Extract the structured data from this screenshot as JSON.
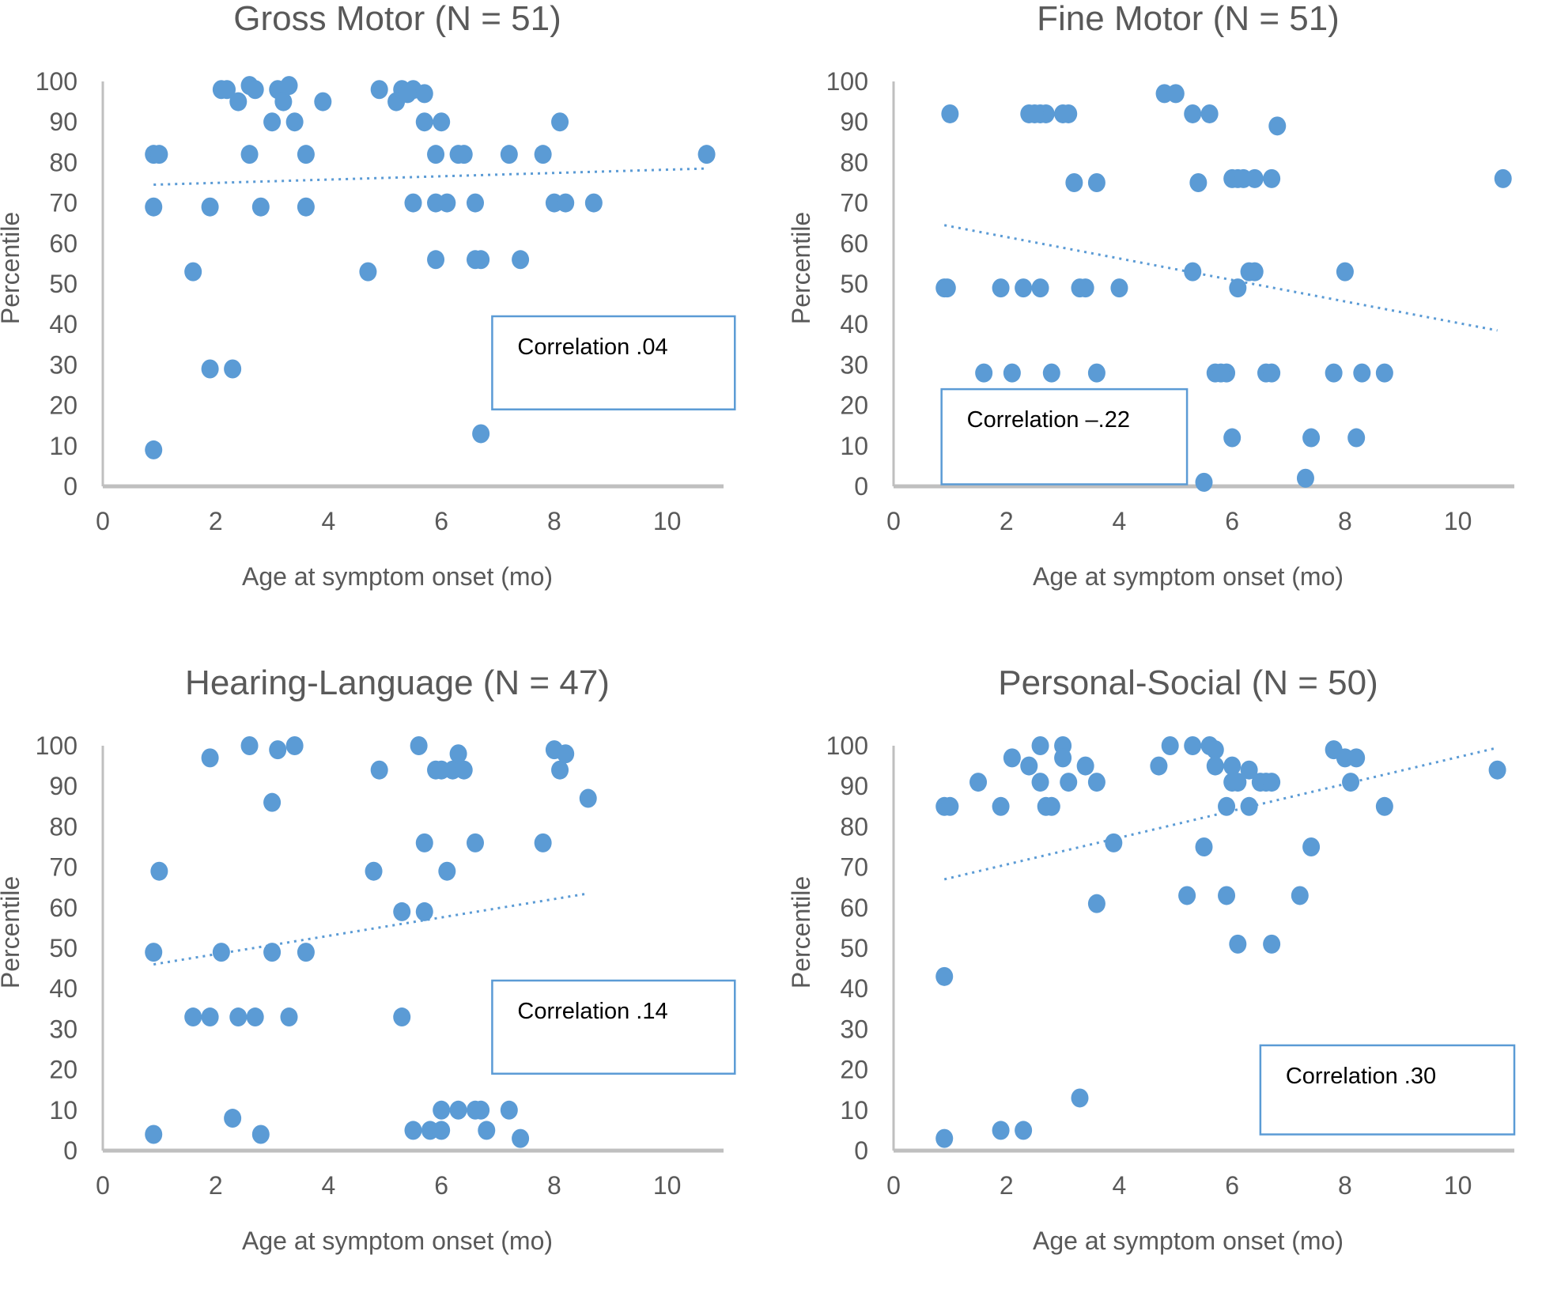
{
  "figure": {
    "colors": {
      "marker": "#5b9bd5",
      "axis": "#bfbfbf",
      "text": "#595959",
      "box_border": "#5b9bd5"
    }
  },
  "chart_data": [
    {
      "type": "scatter",
      "title": "Gross Motor (N = 51)",
      "xlabel": "Age at symptom onset (mo)",
      "ylabel": "Percentile",
      "xlim": [
        0,
        11
      ],
      "ylim": [
        0,
        100
      ],
      "xticks": [
        "0",
        "2",
        "4",
        "6",
        "8",
        "10"
      ],
      "yticks": [
        "0",
        "10",
        "20",
        "30",
        "40",
        "50",
        "60",
        "70",
        "80",
        "90",
        "100"
      ],
      "grid": false,
      "annotation": "Correlation  .04",
      "correlation": 0.04,
      "trendline": {
        "x": [
          0.9,
          10.7
        ],
        "y": [
          74.5,
          78.5
        ],
        "style": "dotted"
      },
      "points": [
        [
          0.9,
          82
        ],
        [
          1.0,
          82
        ],
        [
          0.9,
          69
        ],
        [
          1.6,
          53
        ],
        [
          1.9,
          69
        ],
        [
          1.9,
          29
        ],
        [
          2.3,
          29
        ],
        [
          0.9,
          9
        ],
        [
          2.1,
          98
        ],
        [
          2.4,
          95
        ],
        [
          2.6,
          99
        ],
        [
          2.7,
          98
        ],
        [
          2.6,
          82
        ],
        [
          2.8,
          69
        ],
        [
          3.0,
          90
        ],
        [
          3.1,
          98
        ],
        [
          3.2,
          95
        ],
        [
          3.3,
          99
        ],
        [
          3.4,
          90
        ],
        [
          3.6,
          82
        ],
        [
          3.6,
          69
        ],
        [
          3.9,
          95
        ],
        [
          4.7,
          53
        ],
        [
          4.9,
          98
        ],
        [
          5.2,
          95
        ],
        [
          5.3,
          98
        ],
        [
          5.5,
          98
        ],
        [
          5.7,
          97
        ],
        [
          5.7,
          90
        ],
        [
          5.5,
          70
        ],
        [
          5.9,
          82
        ],
        [
          6.0,
          90
        ],
        [
          5.9,
          70
        ],
        [
          6.1,
          70
        ],
        [
          5.9,
          56
        ],
        [
          6.3,
          82
        ],
        [
          6.4,
          82
        ],
        [
          6.6,
          70
        ],
        [
          6.6,
          56
        ],
        [
          6.7,
          56
        ],
        [
          6.7,
          13
        ],
        [
          7.2,
          82
        ],
        [
          7.4,
          56
        ],
        [
          7.8,
          82
        ],
        [
          8.0,
          70
        ],
        [
          8.2,
          70
        ],
        [
          8.1,
          90
        ],
        [
          8.7,
          70
        ],
        [
          10.7,
          82
        ],
        [
          2.2,
          98
        ],
        [
          5.4,
          97
        ]
      ]
    },
    {
      "type": "scatter",
      "title": "Fine Motor (N = 51)",
      "xlabel": "Age at symptom onset (mo)",
      "ylabel": "Percentile",
      "xlim": [
        0,
        11
      ],
      "ylim": [
        0,
        100
      ],
      "xticks": [
        "0",
        "2",
        "4",
        "6",
        "8",
        "10"
      ],
      "yticks": [
        "0",
        "10",
        "20",
        "30",
        "40",
        "50",
        "60",
        "70",
        "80",
        "90",
        "100"
      ],
      "grid": false,
      "annotation": "Correlation  –.22",
      "correlation": -0.22,
      "trendline": {
        "x": [
          0.9,
          10.7
        ],
        "y": [
          64.5,
          38.5
        ],
        "style": "dotted"
      },
      "points": [
        [
          1.0,
          92
        ],
        [
          0.9,
          49
        ],
        [
          1.6,
          28
        ],
        [
          1.9,
          49
        ],
        [
          2.1,
          28
        ],
        [
          2.3,
          49
        ],
        [
          2.4,
          92
        ],
        [
          2.6,
          92
        ],
        [
          2.7,
          92
        ],
        [
          2.6,
          49
        ],
        [
          2.8,
          28
        ],
        [
          3.0,
          92
        ],
        [
          3.1,
          92
        ],
        [
          3.2,
          75
        ],
        [
          3.3,
          49
        ],
        [
          3.4,
          49
        ],
        [
          3.6,
          75
        ],
        [
          3.6,
          28
        ],
        [
          4.0,
          49
        ],
        [
          4.8,
          97
        ],
        [
          5.0,
          97
        ],
        [
          5.3,
          53
        ],
        [
          5.3,
          92
        ],
        [
          5.4,
          75
        ],
        [
          5.5,
          1
        ],
        [
          5.6,
          92
        ],
        [
          5.7,
          28
        ],
        [
          5.9,
          28
        ],
        [
          6.0,
          76
        ],
        [
          6.0,
          12
        ],
        [
          6.1,
          49
        ],
        [
          6.1,
          76
        ],
        [
          6.2,
          76
        ],
        [
          6.3,
          53
        ],
        [
          6.4,
          53
        ],
        [
          6.4,
          76
        ],
        [
          6.6,
          28
        ],
        [
          6.7,
          76
        ],
        [
          6.7,
          28
        ],
        [
          6.8,
          89
        ],
        [
          7.3,
          2
        ],
        [
          7.4,
          12
        ],
        [
          7.8,
          28
        ],
        [
          8.0,
          53
        ],
        [
          8.2,
          12
        ],
        [
          8.3,
          28
        ],
        [
          8.7,
          28
        ],
        [
          10.8,
          76
        ],
        [
          0.95,
          49
        ],
        [
          5.8,
          28
        ],
        [
          2.5,
          92
        ]
      ]
    },
    {
      "type": "scatter",
      "title": "Hearing-Language (N = 47)",
      "xlabel": "Age at symptom onset (mo)",
      "ylabel": "Percentile",
      "xlim": [
        0,
        11
      ],
      "ylim": [
        0,
        100
      ],
      "xticks": [
        "0",
        "2",
        "4",
        "6",
        "8",
        "10"
      ],
      "yticks": [
        "0",
        "10",
        "20",
        "30",
        "40",
        "50",
        "60",
        "70",
        "80",
        "90",
        "100"
      ],
      "grid": false,
      "annotation": "Correlation  .14",
      "correlation": 0.14,
      "trendline": {
        "x": [
          0.9,
          8.6
        ],
        "y": [
          46,
          63.5
        ],
        "style": "dotted"
      },
      "points": [
        [
          0.9,
          4
        ],
        [
          0.9,
          49
        ],
        [
          1.0,
          69
        ],
        [
          1.6,
          33
        ],
        [
          1.9,
          97
        ],
        [
          1.9,
          33
        ],
        [
          2.1,
          49
        ],
        [
          2.3,
          8
        ],
        [
          2.4,
          33
        ],
        [
          2.6,
          100
        ],
        [
          2.7,
          33
        ],
        [
          2.8,
          4
        ],
        [
          3.0,
          86
        ],
        [
          3.0,
          49
        ],
        [
          3.1,
          99
        ],
        [
          3.3,
          33
        ],
        [
          3.4,
          100
        ],
        [
          3.6,
          49
        ],
        [
          4.8,
          69
        ],
        [
          4.9,
          94
        ],
        [
          5.3,
          59
        ],
        [
          5.3,
          33
        ],
        [
          5.5,
          5
        ],
        [
          5.6,
          100
        ],
        [
          5.7,
          76
        ],
        [
          5.7,
          59
        ],
        [
          5.8,
          5
        ],
        [
          5.9,
          94
        ],
        [
          6.0,
          10
        ],
        [
          6.0,
          94
        ],
        [
          6.0,
          5
        ],
        [
          6.1,
          69
        ],
        [
          6.2,
          94
        ],
        [
          6.3,
          98
        ],
        [
          6.3,
          10
        ],
        [
          6.4,
          94
        ],
        [
          6.6,
          10
        ],
        [
          6.6,
          76
        ],
        [
          6.7,
          10
        ],
        [
          6.8,
          5
        ],
        [
          7.2,
          10
        ],
        [
          7.4,
          3
        ],
        [
          7.8,
          76
        ],
        [
          8.0,
          99
        ],
        [
          8.1,
          94
        ],
        [
          8.2,
          98
        ],
        [
          8.6,
          87
        ]
      ]
    },
    {
      "type": "scatter",
      "title": "Personal-Social (N = 50)",
      "xlabel": "Age at symptom onset (mo)",
      "ylabel": "Percentile",
      "xlim": [
        0,
        11
      ],
      "ylim": [
        0,
        100
      ],
      "xticks": [
        "0",
        "2",
        "4",
        "6",
        "8",
        "10"
      ],
      "yticks": [
        "0",
        "10",
        "20",
        "30",
        "40",
        "50",
        "60",
        "70",
        "80",
        "90",
        "100"
      ],
      "grid": false,
      "annotation": "Correlation  .30",
      "correlation": 0.3,
      "trendline": {
        "x": [
          0.9,
          10.7
        ],
        "y": [
          67,
          99.5
        ],
        "style": "dotted"
      },
      "points": [
        [
          0.9,
          85
        ],
        [
          1.0,
          85
        ],
        [
          0.9,
          43
        ],
        [
          0.9,
          3
        ],
        [
          1.5,
          91
        ],
        [
          1.9,
          85
        ],
        [
          1.9,
          5
        ],
        [
          2.1,
          97
        ],
        [
          2.3,
          5
        ],
        [
          2.4,
          95
        ],
        [
          2.6,
          100
        ],
        [
          2.6,
          91
        ],
        [
          2.7,
          85
        ],
        [
          2.8,
          85
        ],
        [
          3.0,
          100
        ],
        [
          3.0,
          97
        ],
        [
          3.1,
          91
        ],
        [
          3.3,
          13
        ],
        [
          3.4,
          95
        ],
        [
          3.6,
          91
        ],
        [
          3.6,
          61
        ],
        [
          3.9,
          76
        ],
        [
          4.7,
          95
        ],
        [
          4.9,
          100
        ],
        [
          5.2,
          63
        ],
        [
          5.3,
          100
        ],
        [
          5.5,
          75
        ],
        [
          5.6,
          100
        ],
        [
          5.7,
          99
        ],
        [
          5.7,
          95
        ],
        [
          5.9,
          63
        ],
        [
          5.9,
          85
        ],
        [
          6.0,
          95
        ],
        [
          6.0,
          91
        ],
        [
          6.1,
          51
        ],
        [
          6.1,
          91
        ],
        [
          6.3,
          85
        ],
        [
          6.3,
          94
        ],
        [
          6.5,
          91
        ],
        [
          6.6,
          91
        ],
        [
          6.7,
          91
        ],
        [
          6.7,
          51
        ],
        [
          7.2,
          63
        ],
        [
          7.4,
          75
        ],
        [
          7.8,
          99
        ],
        [
          8.0,
          97
        ],
        [
          8.1,
          91
        ],
        [
          8.2,
          97
        ],
        [
          8.7,
          85
        ],
        [
          10.7,
          94
        ]
      ]
    }
  ]
}
